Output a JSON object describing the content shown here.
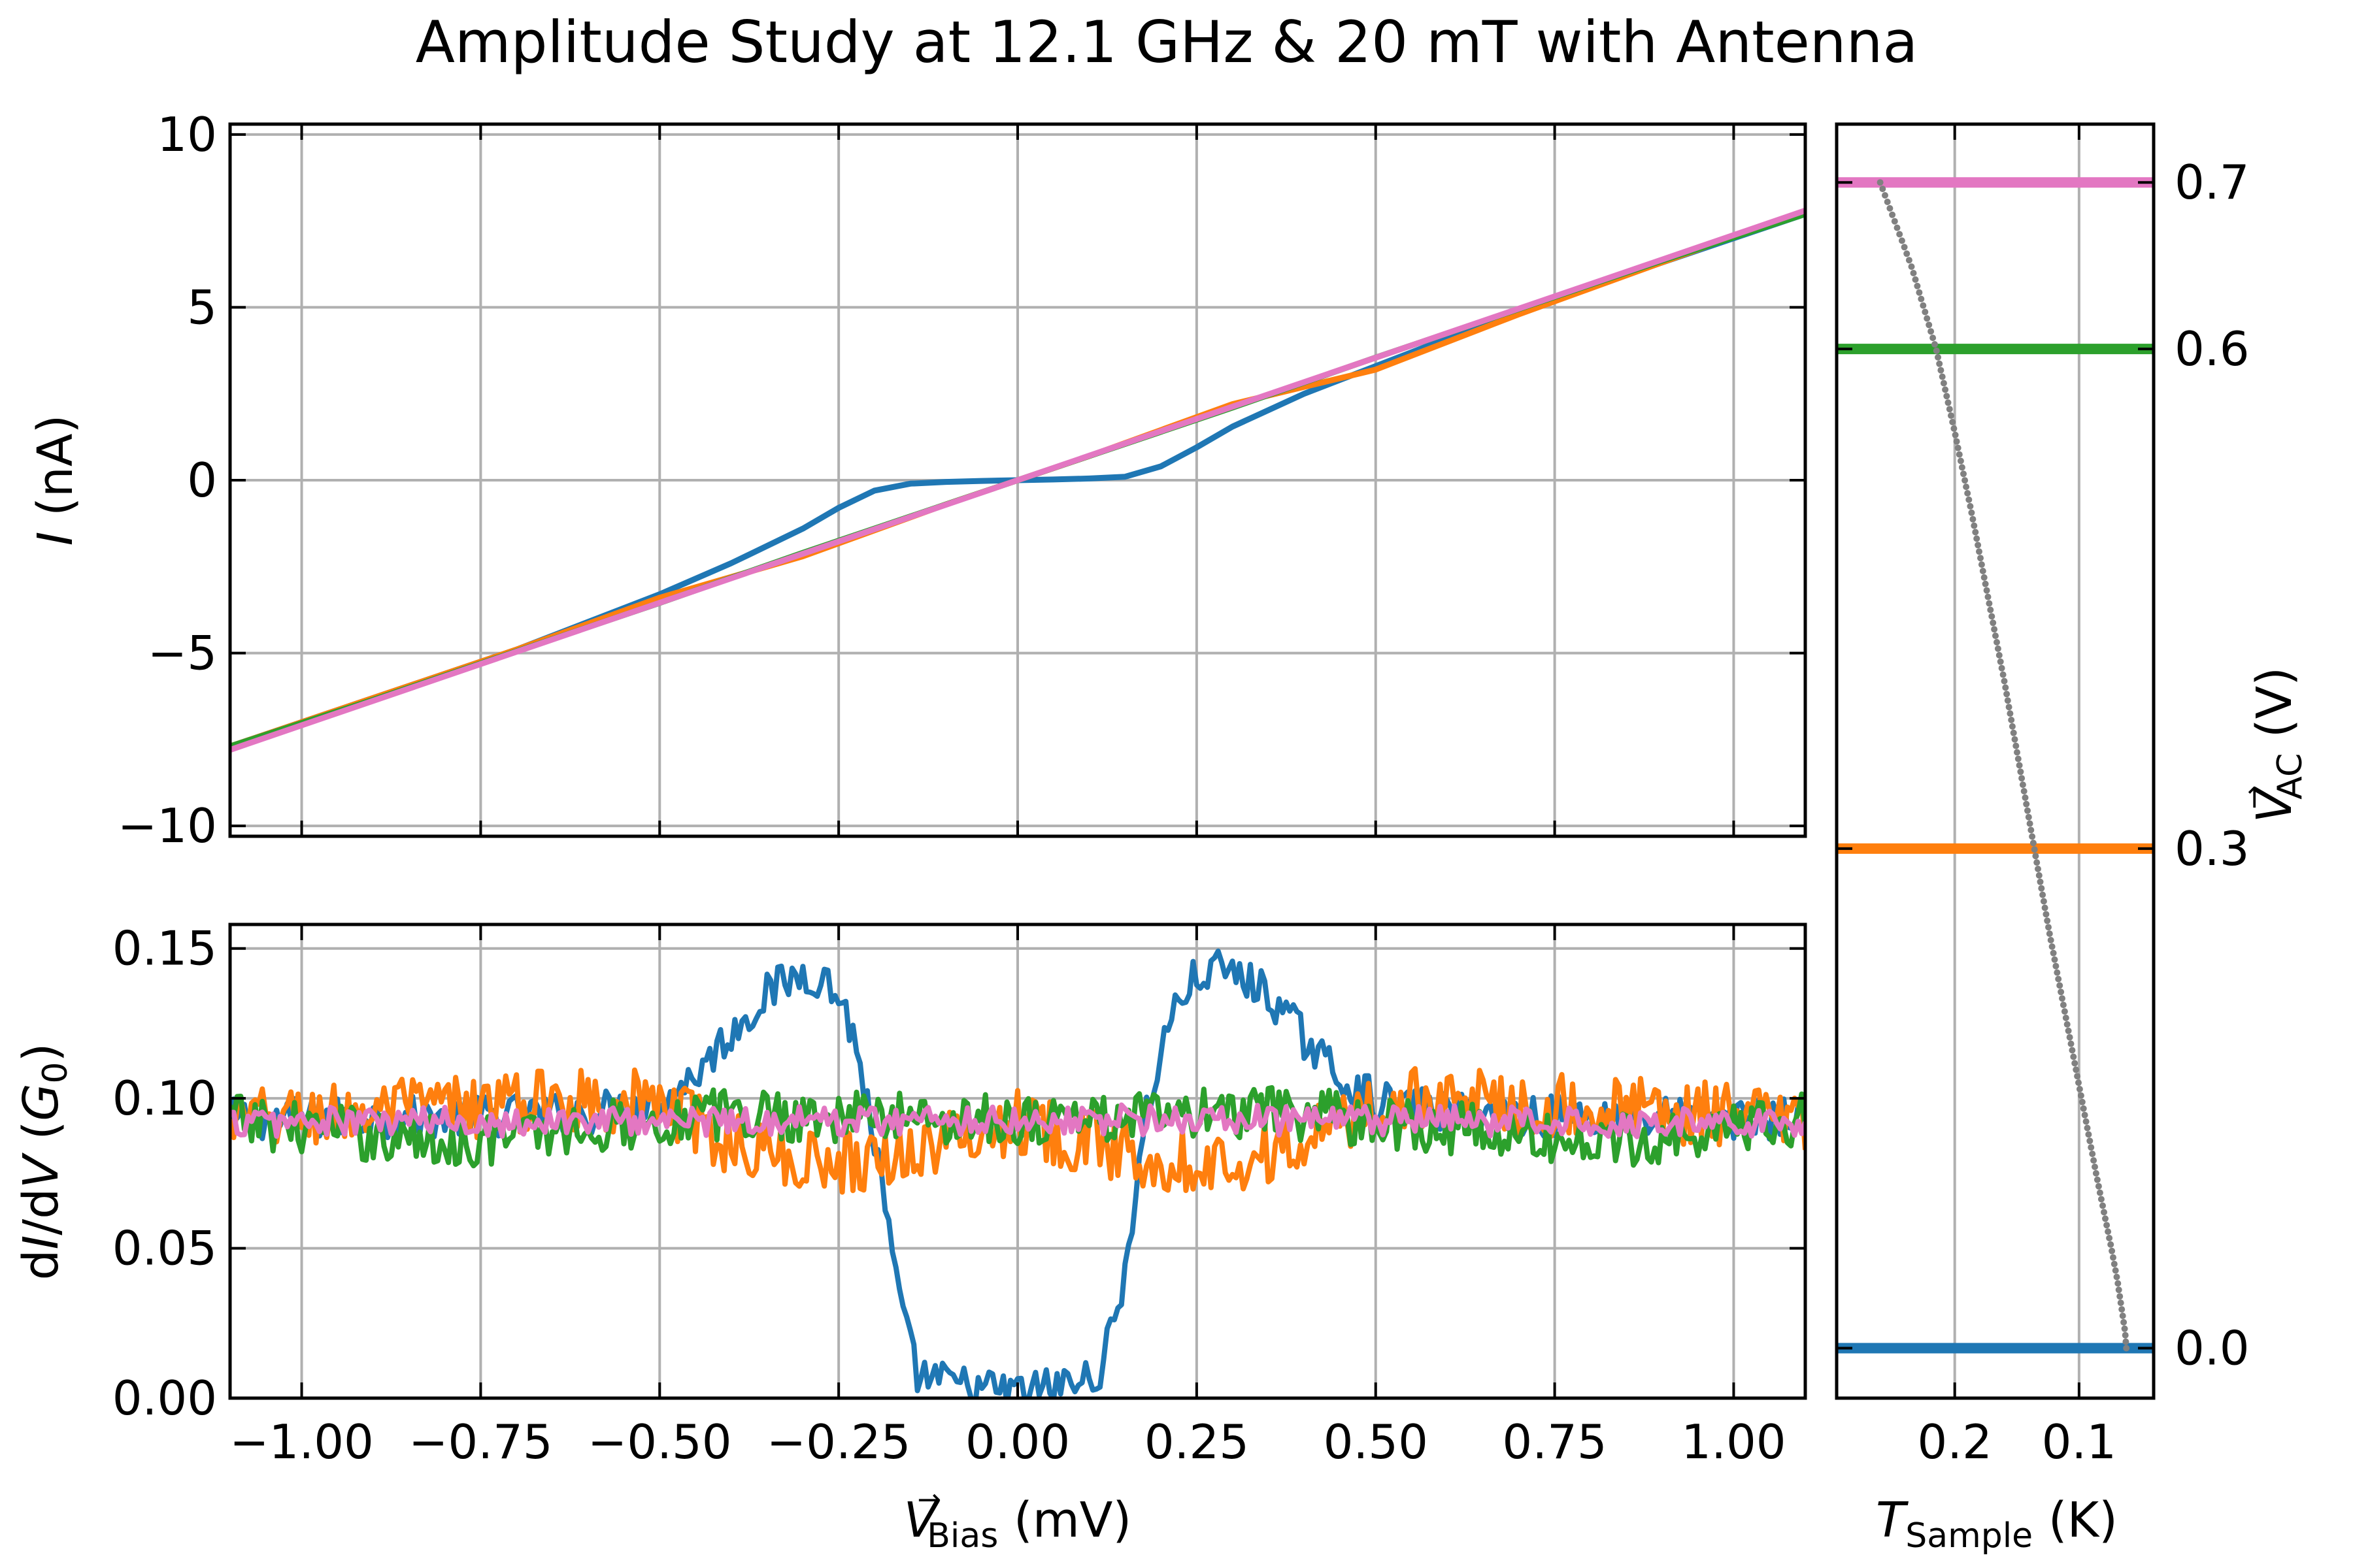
{
  "title": "Amplitude Study at 12.1 GHz & 20 mT with Antenna",
  "colors": {
    "c0": "#1f77b4",
    "c1": "#ff7f0e",
    "c2": "#2ca02c",
    "c3": "#e377c2",
    "temperature": "#808080",
    "grid": "#b0b0b0"
  },
  "chart_data": [
    {
      "panel": "iv",
      "type": "line",
      "ylabel_symbol": "I",
      "ylabel_unit": "(nA)",
      "xlim": [
        -1.1,
        1.1
      ],
      "ylim": [
        -10.3,
        10.3
      ],
      "yticks": [
        -10,
        -5,
        0,
        5,
        10
      ],
      "ytick_labels": [
        "−10",
        "−5",
        "0",
        "5",
        "10"
      ],
      "grid": true,
      "series": [
        {
          "color_key": "c0",
          "x": [
            -1.1,
            -0.9,
            -0.7,
            -0.5,
            -0.4,
            -0.3,
            -0.25,
            -0.2,
            -0.15,
            -0.1,
            -0.05,
            0.0,
            0.05,
            0.1,
            0.15,
            0.2,
            0.25,
            0.3,
            0.4,
            0.5,
            0.7,
            0.9,
            1.1
          ],
          "y": [
            -7.7,
            -6.3,
            -4.9,
            -3.3,
            -2.4,
            -1.4,
            -0.8,
            -0.3,
            -0.1,
            -0.05,
            -0.02,
            0.0,
            0.02,
            0.05,
            0.1,
            0.4,
            0.95,
            1.55,
            2.5,
            3.3,
            4.9,
            6.3,
            7.7
          ]
        },
        {
          "color_key": "c1",
          "x": [
            -1.1,
            -0.9,
            -0.7,
            -0.5,
            -0.3,
            -0.1,
            0.0,
            0.1,
            0.3,
            0.5,
            0.7,
            0.9,
            1.1
          ],
          "y": [
            -7.7,
            -6.3,
            -4.9,
            -3.4,
            -2.2,
            -0.7,
            0.0,
            0.7,
            2.2,
            3.2,
            4.8,
            6.3,
            7.8
          ]
        },
        {
          "color_key": "c2",
          "x": [
            -1.1,
            -0.9,
            -0.7,
            -0.5,
            -0.3,
            -0.1,
            0.0,
            0.1,
            0.3,
            0.5,
            0.7,
            0.9,
            1.1
          ],
          "y": [
            -7.7,
            -6.35,
            -4.95,
            -3.55,
            -2.1,
            -0.7,
            0.0,
            0.7,
            2.1,
            3.55,
            4.95,
            6.35,
            7.7
          ]
        },
        {
          "color_key": "c3",
          "x": [
            -1.1,
            1.1
          ],
          "y": [
            -7.8,
            7.8
          ]
        }
      ]
    },
    {
      "panel": "didv",
      "type": "line",
      "ylabel_pre": "d",
      "ylabel_i": "I",
      "ylabel_mid": "/d",
      "ylabel_v": "V",
      "ylabel_open": " (",
      "ylabel_g": "G",
      "ylabel_sub": "0",
      "ylabel_close": ")",
      "xlabel_symbol": "V",
      "xlabel_arrow": "→",
      "xlabel_sub": "Bias",
      "xlabel_unit": "(mV)",
      "xlim": [
        -1.1,
        1.1
      ],
      "ylim": [
        0.0,
        0.158
      ],
      "xticks": [
        -1.0,
        -0.75,
        -0.5,
        -0.25,
        0.0,
        0.25,
        0.5,
        0.75,
        1.0
      ],
      "xtick_labels": [
        "−1.00",
        "−0.75",
        "−0.50",
        "−0.25",
        "0.00",
        "0.25",
        "0.50",
        "0.75",
        "1.00"
      ],
      "yticks": [
        0.0,
        0.05,
        0.1,
        0.15
      ],
      "ytick_labels": [
        "0.00",
        "0.05",
        "0.10",
        "0.15"
      ],
      "grid": true,
      "series": [
        {
          "color_key": "c0",
          "noise": 0.007,
          "x": [
            -1.1,
            -0.8,
            -0.6,
            -0.5,
            -0.45,
            -0.4,
            -0.35,
            -0.3,
            -0.27,
            -0.24,
            -0.21,
            -0.18,
            -0.16,
            -0.14,
            -0.1,
            -0.05,
            0.0,
            0.05,
            0.1,
            0.12,
            0.14,
            0.16,
            0.18,
            0.21,
            0.24,
            0.27,
            0.3,
            0.35,
            0.4,
            0.45,
            0.5,
            0.6,
            0.8,
            1.1
          ],
          "y": [
            0.093,
            0.094,
            0.095,
            0.099,
            0.108,
            0.122,
            0.135,
            0.142,
            0.14,
            0.13,
            0.1,
            0.055,
            0.025,
            0.008,
            0.005,
            0.003,
            0.002,
            0.004,
            0.006,
            0.012,
            0.03,
            0.06,
            0.095,
            0.125,
            0.138,
            0.143,
            0.142,
            0.135,
            0.12,
            0.107,
            0.099,
            0.095,
            0.094,
            0.093
          ]
        },
        {
          "color_key": "c1",
          "noise": 0.011,
          "x": [
            -1.1,
            -1.0,
            -0.8,
            -0.6,
            -0.5,
            -0.4,
            -0.3,
            -0.2,
            -0.1,
            0.0,
            0.1,
            0.2,
            0.3,
            0.4,
            0.5,
            0.6,
            0.8,
            1.0,
            1.1
          ],
          "y": [
            0.092,
            0.094,
            0.097,
            0.1,
            0.098,
            0.085,
            0.079,
            0.08,
            0.085,
            0.093,
            0.085,
            0.08,
            0.079,
            0.085,
            0.098,
            0.1,
            0.097,
            0.094,
            0.092
          ]
        },
        {
          "color_key": "c2",
          "noise": 0.009,
          "x": [
            -1.1,
            -0.8,
            -0.6,
            -0.4,
            -0.2,
            0.0,
            0.2,
            0.4,
            0.6,
            0.8,
            1.1
          ],
          "y": [
            0.093,
            0.085,
            0.09,
            0.095,
            0.094,
            0.093,
            0.094,
            0.095,
            0.09,
            0.085,
            0.093
          ]
        },
        {
          "color_key": "c3",
          "noise": 0.005,
          "x": [
            -1.1,
            0.0,
            1.1
          ],
          "y": [
            0.092,
            0.093,
            0.092
          ]
        }
      ]
    },
    {
      "panel": "temperature",
      "type": "line",
      "xlabel_symbol": "T",
      "xlabel_sub": "Sample",
      "xlabel_unit": "(K)",
      "ylabel_symbol": "V",
      "ylabel_arrow": "→",
      "ylabel_sub": "AC",
      "ylabel_unit": "(V)",
      "xlim": [
        0.295,
        0.04
      ],
      "ylim": [
        -0.03,
        0.735
      ],
      "xticks": [
        0.2,
        0.1
      ],
      "xtick_labels": [
        "0.2",
        "0.1"
      ],
      "yticks": [
        0.0,
        0.3,
        0.6,
        0.7
      ],
      "ytick_labels": [
        "0.0",
        "0.3",
        "0.6",
        "0.7"
      ],
      "grid": true,
      "levels": [
        {
          "value": 0.0,
          "color_key": "c0"
        },
        {
          "value": 0.3,
          "color_key": "c1"
        },
        {
          "value": 0.6,
          "color_key": "c2"
        },
        {
          "value": 0.7,
          "color_key": "c3"
        }
      ],
      "temperature_trace": {
        "color_key": "temperature",
        "v": [
          0.0,
          0.01,
          0.02,
          0.04,
          0.06,
          0.1,
          0.15,
          0.2,
          0.25,
          0.3,
          0.35,
          0.4,
          0.45,
          0.5,
          0.55,
          0.6,
          0.65,
          0.7
        ],
        "t": [
          0.062,
          0.063,
          0.065,
          0.069,
          0.074,
          0.085,
          0.098,
          0.111,
          0.124,
          0.136,
          0.148,
          0.16,
          0.173,
          0.186,
          0.2,
          0.215,
          0.235,
          0.26
        ]
      }
    }
  ]
}
